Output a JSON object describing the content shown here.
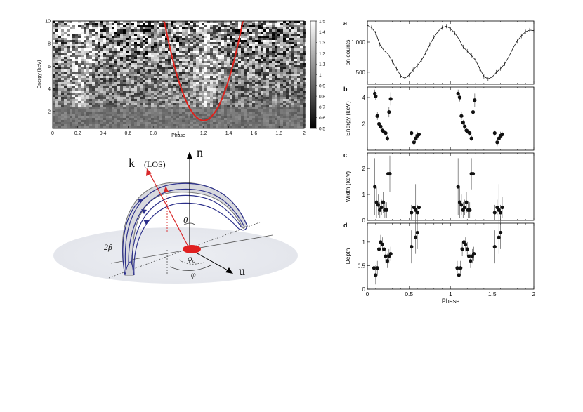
{
  "chart_data": [
    {
      "type": "heatmap",
      "panel": "spectrogram",
      "xlabel": "Phase",
      "ylabel": "Energy (keV)",
      "xlim": [
        0,
        2
      ],
      "ylim": [
        0.5,
        10
      ],
      "xticks": [
        "0",
        "0.2",
        "0.4",
        "0.6",
        "0.8",
        "1",
        "1.2",
        "1.4",
        "1.6",
        "1.8",
        "2"
      ],
      "yticks": [
        "2",
        "4",
        "6",
        "8",
        "10"
      ],
      "colorbar_ticks": [
        "0.5",
        "0.6",
        "0.7",
        "0.8",
        "0.9",
        "1",
        "1.1",
        "1.2",
        "1.3",
        "1.4",
        "1.5"
      ],
      "colorbar_range": [
        0.5,
        1.5
      ],
      "curve_color": "#e0201a",
      "curve_min": {
        "phase": 1.2,
        "energy": 1.2
      }
    },
    {
      "type": "line",
      "panel_letter": "a",
      "ylabel": "pn counts",
      "xlim": [
        0,
        2
      ],
      "ylim": [
        300,
        1350
      ],
      "yticks": [
        "500",
        "1,000"
      ],
      "x": [
        0,
        0.05,
        0.1,
        0.15,
        0.2,
        0.25,
        0.3,
        0.35,
        0.4,
        0.45,
        0.5,
        0.55,
        0.6,
        0.65,
        0.7,
        0.75,
        0.8,
        0.85,
        0.9,
        0.95,
        1.0,
        1.05,
        1.1,
        1.15,
        1.2,
        1.25,
        1.3,
        1.35,
        1.4,
        1.45,
        1.5,
        1.55,
        1.6,
        1.65,
        1.7,
        1.75,
        1.8,
        1.85,
        1.9,
        1.95,
        2.0
      ],
      "y": [
        1280,
        1240,
        1150,
        960,
        860,
        800,
        680,
        560,
        440,
        400,
        450,
        540,
        610,
        700,
        820,
        960,
        1080,
        1180,
        1240,
        1265,
        1220,
        1150,
        1050,
        920,
        850,
        780,
        700,
        560,
        430,
        390,
        420,
        500,
        560,
        640,
        760,
        900,
        1020,
        1100,
        1170,
        1200,
        1190
      ]
    },
    {
      "type": "scatter",
      "panel_letter": "b",
      "ylabel": "Energy (keV)",
      "xlim": [
        0,
        2
      ],
      "ylim": [
        0,
        4.8
      ],
      "yticks": [
        "2",
        "4"
      ],
      "points": [
        [
          0.09,
          4.3,
          0.3
        ],
        [
          0.1,
          4.1,
          0.3
        ],
        [
          0.12,
          2.6,
          0.3
        ],
        [
          0.14,
          2.0,
          0.2
        ],
        [
          0.16,
          1.8,
          0.2
        ],
        [
          0.18,
          1.5,
          0.2
        ],
        [
          0.2,
          1.4,
          0.2
        ],
        [
          0.22,
          1.3,
          0.2
        ],
        [
          0.24,
          0.9,
          0.2
        ],
        [
          0.26,
          2.9,
          0.4
        ],
        [
          0.28,
          3.9,
          0.5
        ],
        [
          0.53,
          1.3,
          0.2
        ],
        [
          0.56,
          0.6,
          0.3
        ],
        [
          0.58,
          0.9,
          0.3
        ],
        [
          0.6,
          1.1,
          0.3
        ],
        [
          0.62,
          1.2,
          0.2
        ],
        [
          1.09,
          4.3,
          0.3
        ],
        [
          1.11,
          4.0,
          0.3
        ],
        [
          1.13,
          2.6,
          0.3
        ],
        [
          1.15,
          2.1,
          0.2
        ],
        [
          1.17,
          1.8,
          0.2
        ],
        [
          1.19,
          1.5,
          0.2
        ],
        [
          1.21,
          1.4,
          0.2
        ],
        [
          1.23,
          1.3,
          0.2
        ],
        [
          1.25,
          0.9,
          0.2
        ],
        [
          1.27,
          2.9,
          0.4
        ],
        [
          1.29,
          3.8,
          0.5
        ],
        [
          1.53,
          1.3,
          0.2
        ],
        [
          1.56,
          0.6,
          0.3
        ],
        [
          1.58,
          0.9,
          0.3
        ],
        [
          1.6,
          1.1,
          0.3
        ],
        [
          1.62,
          1.2,
          0.2
        ]
      ]
    },
    {
      "type": "scatter",
      "panel_letter": "c",
      "ylabel": "Width (keV)",
      "xlim": [
        0,
        2
      ],
      "ylim": [
        0,
        2.6
      ],
      "yticks": [
        "0",
        "1",
        "2"
      ],
      "points": [
        [
          0.09,
          1.3,
          1.1
        ],
        [
          0.11,
          0.7,
          0.6
        ],
        [
          0.13,
          0.6,
          0.4
        ],
        [
          0.15,
          0.4,
          0.3
        ],
        [
          0.17,
          0.5,
          0.3
        ],
        [
          0.19,
          0.7,
          0.4
        ],
        [
          0.21,
          0.4,
          0.3
        ],
        [
          0.23,
          0.4,
          0.3
        ],
        [
          0.25,
          1.8,
          0.6
        ],
        [
          0.27,
          1.8,
          0.7
        ],
        [
          0.53,
          0.3,
          0.3
        ],
        [
          0.56,
          0.5,
          0.3
        ],
        [
          0.58,
          0.4,
          1.0
        ],
        [
          0.6,
          0.3,
          0.3
        ],
        [
          0.62,
          0.5,
          0.4
        ],
        [
          1.09,
          1.3,
          1.1
        ],
        [
          1.11,
          0.7,
          0.6
        ],
        [
          1.13,
          0.6,
          0.4
        ],
        [
          1.15,
          0.4,
          0.3
        ],
        [
          1.17,
          0.5,
          0.3
        ],
        [
          1.19,
          0.7,
          0.4
        ],
        [
          1.21,
          0.4,
          0.3
        ],
        [
          1.23,
          0.4,
          0.3
        ],
        [
          1.25,
          1.8,
          0.6
        ],
        [
          1.27,
          1.8,
          0.7
        ],
        [
          1.53,
          0.3,
          0.3
        ],
        [
          1.56,
          0.5,
          0.3
        ],
        [
          1.58,
          0.4,
          1.0
        ],
        [
          1.6,
          0.3,
          0.3
        ],
        [
          1.62,
          0.5,
          0.4
        ]
      ]
    },
    {
      "type": "scatter",
      "panel_letter": "d",
      "ylabel": "Depth",
      "xlabel": "Phase",
      "xlim": [
        0,
        2
      ],
      "ylim": [
        0,
        1.4
      ],
      "yticks": [
        "0",
        "0.5",
        "1"
      ],
      "xticks": [
        "0",
        "0.5",
        "1",
        "1.5",
        "2"
      ],
      "points": [
        [
          0.08,
          0.45,
          0.15
        ],
        [
          0.1,
          0.3,
          0.2
        ],
        [
          0.12,
          0.45,
          0.15
        ],
        [
          0.14,
          0.85,
          0.15
        ],
        [
          0.16,
          1.0,
          0.15
        ],
        [
          0.18,
          0.95,
          0.15
        ],
        [
          0.2,
          0.85,
          0.15
        ],
        [
          0.22,
          0.7,
          0.15
        ],
        [
          0.24,
          0.6,
          0.15
        ],
        [
          0.26,
          0.7,
          0.15
        ],
        [
          0.28,
          0.75,
          0.15
        ],
        [
          0.53,
          0.9,
          0.35
        ],
        [
          0.58,
          1.1,
          0.35
        ],
        [
          0.6,
          1.2,
          0.35
        ],
        [
          1.08,
          0.45,
          0.15
        ],
        [
          1.1,
          0.3,
          0.2
        ],
        [
          1.12,
          0.45,
          0.15
        ],
        [
          1.14,
          0.85,
          0.15
        ],
        [
          1.16,
          1.0,
          0.15
        ],
        [
          1.18,
          0.95,
          0.15
        ],
        [
          1.2,
          0.85,
          0.15
        ],
        [
          1.22,
          0.7,
          0.15
        ],
        [
          1.24,
          0.6,
          0.15
        ],
        [
          1.26,
          0.7,
          0.15
        ],
        [
          1.28,
          0.75,
          0.15
        ],
        [
          1.53,
          0.9,
          0.35
        ],
        [
          1.58,
          1.1,
          0.35
        ],
        [
          1.6,
          1.2,
          0.35
        ]
      ]
    }
  ],
  "diagram": {
    "label_k": "k",
    "label_los": "(LOS)",
    "label_n": "n",
    "label_u": "u",
    "label_theta": "θ",
    "label_phi0": "φ",
    "label_phi0_sub": "o",
    "label_phi": "φ",
    "label_2beta": "2β",
    "arc_color": "#2b2f8a",
    "arc_fill": "#d8d9de",
    "los_color": "#d8282a",
    "foot_color": "#e02020"
  }
}
